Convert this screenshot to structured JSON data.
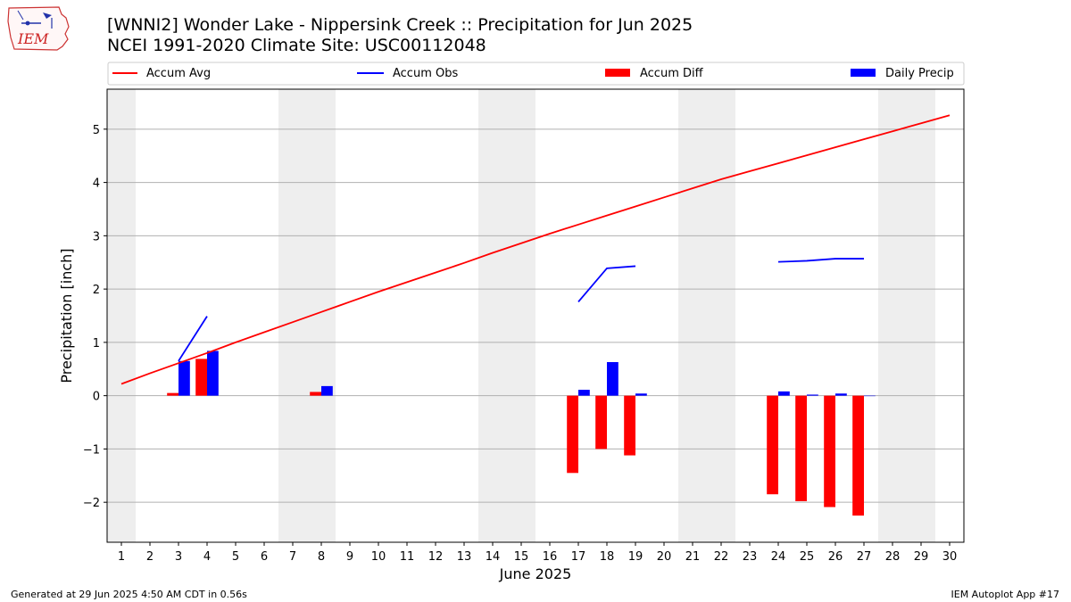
{
  "header": {
    "title_line1": "[WNNI2] Wonder Lake - Nippersink Creek :: Precipitation for Jun 2025",
    "title_line2": "NCEI 1991-2020 Climate Site: USC00112048"
  },
  "logo": {
    "text": "IEM",
    "icon": "iem-iowa-logo-icon"
  },
  "footer": {
    "left": "Generated at 29 Jun 2025 4:50 AM CDT in 0.56s",
    "right": "IEM Autoplot App #17"
  },
  "colors": {
    "avg": "#ff0000",
    "obs": "#0000ff",
    "diff": "#ff0000",
    "precip": "#0000ff",
    "weekend": "#eeeeee",
    "grid": "#b0b0b0"
  },
  "chart_data": {
    "type": "bar",
    "xlabel": "June 2025",
    "ylabel": "Precipitation [inch]",
    "xlim": [
      0.5,
      30.5
    ],
    "ylim": [
      -2.75,
      5.75
    ],
    "x_ticks": [
      1,
      2,
      3,
      4,
      5,
      6,
      7,
      8,
      9,
      10,
      11,
      12,
      13,
      14,
      15,
      16,
      17,
      18,
      19,
      20,
      21,
      22,
      23,
      24,
      25,
      26,
      27,
      28,
      29,
      30
    ],
    "y_ticks": [
      -2,
      -1,
      0,
      1,
      2,
      3,
      4,
      5
    ],
    "y_tick_labels": [
      "−2",
      "−1",
      "0",
      "1",
      "2",
      "3",
      "4",
      "5"
    ],
    "grid": "y",
    "legend": {
      "placement": "top",
      "entries": [
        "Accum Avg",
        "Accum Obs",
        "Accum Diff",
        "Daily Precip"
      ]
    },
    "weekend_bands": [
      [
        0.5,
        1.5
      ],
      [
        6.5,
        8.5
      ],
      [
        13.5,
        15.5
      ],
      [
        20.5,
        22.5
      ],
      [
        27.5,
        29.5
      ]
    ],
    "accum_avg": {
      "x": [
        1,
        2,
        3,
        4,
        5,
        6,
        7,
        8,
        9,
        10,
        11,
        12,
        13,
        14,
        15,
        16,
        17,
        18,
        19,
        20,
        21,
        22,
        23,
        24,
        25,
        26,
        27,
        28,
        29,
        30
      ],
      "y": [
        0.22,
        0.42,
        0.61,
        0.8,
        1.0,
        1.19,
        1.38,
        1.57,
        1.76,
        1.95,
        2.13,
        2.31,
        2.49,
        2.68,
        2.86,
        3.04,
        3.21,
        3.38,
        3.55,
        3.72,
        3.89,
        4.06,
        4.21,
        4.36,
        4.51,
        4.66,
        4.81,
        4.96,
        5.11,
        5.26
      ]
    },
    "accum_obs": {
      "segments": [
        {
          "x": [
            3,
            4
          ],
          "y": [
            0.65,
            1.49
          ]
        },
        {
          "x": [
            17,
            18,
            19
          ],
          "y": [
            1.76,
            2.39,
            2.43
          ]
        },
        {
          "x": [
            24,
            25,
            26,
            27
          ],
          "y": [
            2.51,
            2.53,
            2.57,
            2.57
          ]
        }
      ]
    },
    "accum_diff": {
      "x": [
        3,
        4,
        8,
        17,
        18,
        19,
        24,
        25,
        26,
        27
      ],
      "y": [
        0.05,
        0.69,
        0.07,
        -1.45,
        -1.0,
        -1.12,
        -1.85,
        -1.98,
        -2.09,
        -2.25
      ]
    },
    "daily_precip": {
      "x": [
        3,
        4,
        8,
        17,
        18,
        19,
        24,
        25,
        26,
        27
      ],
      "y": [
        0.65,
        0.84,
        0.18,
        0.11,
        0.63,
        0.04,
        0.08,
        0.02,
        0.04,
        0.0
      ]
    }
  }
}
